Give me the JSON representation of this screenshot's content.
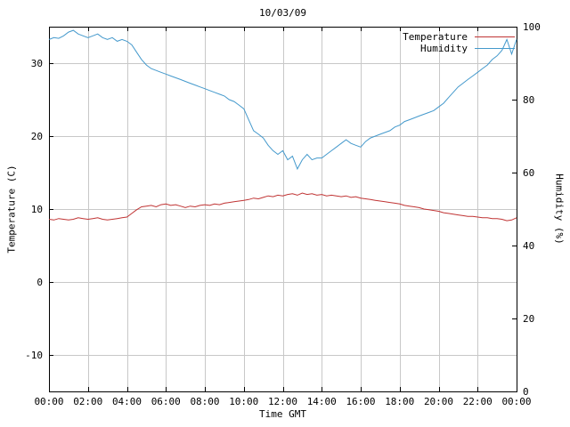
{
  "chart_data": {
    "type": "line",
    "title": "10/03/09",
    "xlabel": "Time GMT",
    "ylabel": "Temperature (C)",
    "y2label": "Humidity (%)",
    "grid": true,
    "legend_position": "top-right",
    "background_color": "#ffffff",
    "grid_color": "#c8c8c8",
    "border_color": "#000000",
    "x_range_hours": [
      0,
      24
    ],
    "x_step_hours": 0.25,
    "x_ticks_hours": [
      0,
      2,
      4,
      6,
      8,
      10,
      12,
      14,
      16,
      18,
      20,
      22,
      24
    ],
    "x_tick_labels": [
      "00:00",
      "02:00",
      "04:00",
      "06:00",
      "08:00",
      "10:00",
      "12:00",
      "14:00",
      "16:00",
      "18:00",
      "20:00",
      "22:00",
      "00:00"
    ],
    "y_range": [
      -15,
      35
    ],
    "y_ticks": [
      -10,
      0,
      10,
      20,
      30
    ],
    "y2_range": [
      0,
      100
    ],
    "y2_ticks": [
      0,
      20,
      40,
      60,
      80,
      100
    ],
    "series": [
      {
        "name": "Temperature",
        "axis": "y1",
        "color": "#c03434",
        "values": [
          8.6,
          8.5,
          8.7,
          8.6,
          8.5,
          8.6,
          8.8,
          8.7,
          8.6,
          8.7,
          8.8,
          8.6,
          8.5,
          8.6,
          8.7,
          8.8,
          8.9,
          9.4,
          9.9,
          10.3,
          10.4,
          10.5,
          10.3,
          10.6,
          10.7,
          10.5,
          10.6,
          10.4,
          10.2,
          10.4,
          10.3,
          10.5,
          10.6,
          10.5,
          10.7,
          10.6,
          10.8,
          10.9,
          11.0,
          11.1,
          11.2,
          11.3,
          11.5,
          11.4,
          11.6,
          11.8,
          11.7,
          11.9,
          11.8,
          12.0,
          12.1,
          11.9,
          12.2,
          12.0,
          12.1,
          11.9,
          12.0,
          11.8,
          11.9,
          11.8,
          11.7,
          11.8,
          11.6,
          11.7,
          11.5,
          11.4,
          11.3,
          11.2,
          11.1,
          11.0,
          10.9,
          10.8,
          10.7,
          10.5,
          10.4,
          10.3,
          10.2,
          10.0,
          9.9,
          9.8,
          9.7,
          9.5,
          9.4,
          9.3,
          9.2,
          9.1,
          9.0,
          9.0,
          8.9,
          8.8,
          8.8,
          8.7,
          8.7,
          8.6,
          8.4,
          8.5,
          8.8
        ]
      },
      {
        "name": "Humidity",
        "axis": "y2",
        "color": "#4499cc",
        "values": [
          96.5,
          97.0,
          96.8,
          97.5,
          98.5,
          99.0,
          98.0,
          97.5,
          97.0,
          97.5,
          98.0,
          97.0,
          96.5,
          97.0,
          96.0,
          96.5,
          96.0,
          95.0,
          93.0,
          91.0,
          89.5,
          88.5,
          88.0,
          87.5,
          87.0,
          86.5,
          86.0,
          85.5,
          85.0,
          84.5,
          84.0,
          83.5,
          83.0,
          82.5,
          82.0,
          81.5,
          81.0,
          80.0,
          79.5,
          78.5,
          77.5,
          74.5,
          71.5,
          70.5,
          69.5,
          67.5,
          66.0,
          65.0,
          66.0,
          63.5,
          64.5,
          61.0,
          63.5,
          65.0,
          63.5,
          64.0,
          64.0,
          65.0,
          66.0,
          67.0,
          68.0,
          69.0,
          68.0,
          67.5,
          67.0,
          68.5,
          69.5,
          70.0,
          70.5,
          71.0,
          71.5,
          72.5,
          73.0,
          74.0,
          74.5,
          75.0,
          75.5,
          76.0,
          76.5,
          77.0,
          78.0,
          79.0,
          80.5,
          82.0,
          83.5,
          84.5,
          85.5,
          86.5,
          87.5,
          88.5,
          89.5,
          91.0,
          92.0,
          93.5,
          96.5,
          92.5,
          96.5
        ]
      }
    ]
  }
}
